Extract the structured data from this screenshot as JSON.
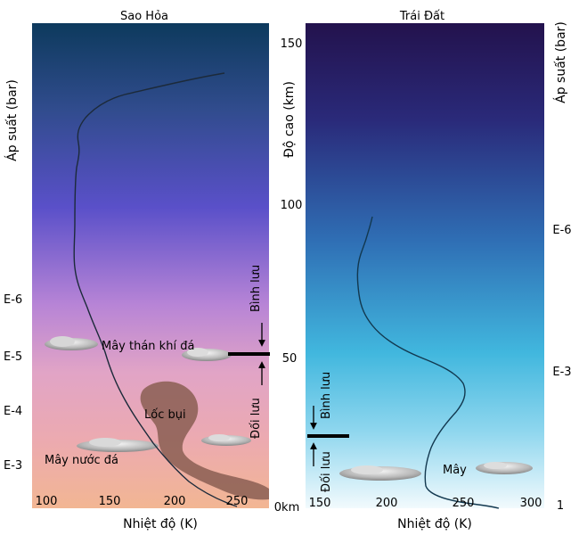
{
  "mars": {
    "title": "Sao Hỏa",
    "xlabel": "Nhiệt độ (K)",
    "x_ticks": [
      "100",
      "150",
      "200",
      "250"
    ],
    "pressure_label": "Áp suất (bar)",
    "pressure_ticks": [
      "E-6",
      "E-5",
      "E-4",
      "E-3"
    ],
    "labels": {
      "co2_clouds": "Mây thán khí đá",
      "dust_devil": "Lốc bụi",
      "water_ice_clouds": "Mây nước đá",
      "stratosphere": "Bình lưu",
      "troposphere": "Đối lưu"
    }
  },
  "earth": {
    "title": "Trái Đất",
    "xlabel": "Nhiệt độ (K)",
    "x_ticks": [
      "150",
      "200",
      "250",
      "300"
    ],
    "pressure_label": "Áp suất (bar)",
    "pressure_ticks": [
      "E-6",
      "E-3",
      "1"
    ],
    "labels": {
      "clouds": "Mây",
      "stratosphere": "Bình lưu",
      "troposphere": "Đối lưu"
    }
  },
  "altitude": {
    "label": "Độ cao (km)",
    "ticks": [
      "150",
      "100",
      "50",
      "0km"
    ]
  },
  "colors": {
    "mars_sky_top": "#0e3a5f",
    "mars_sky_mid": "#5a52c8",
    "mars_sky_low": "#e9a3b8",
    "mars_surface": "#f1b592",
    "earth_sky_top": "#23134e",
    "earth_sky_mid": "#3a9fd2",
    "earth_sky_low": "#eef8fc",
    "profile_line": "#1c2a3a",
    "dust": "#8a5e52"
  }
}
